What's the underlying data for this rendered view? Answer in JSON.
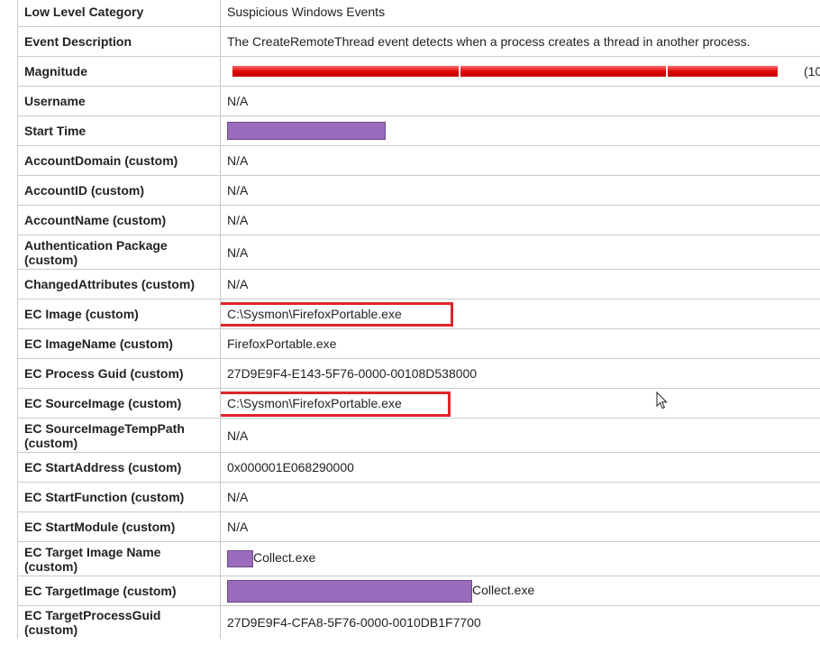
{
  "rows": [
    {
      "label": "Low Level Category",
      "value": "Suspicious Windows Events"
    },
    {
      "label": "Event Description",
      "value": "The CreateRemoteThread event detects when a process creates a thread in another process."
    },
    {
      "label": "Magnitude",
      "value": "(10",
      "magnitude_fraction": 1.0
    },
    {
      "label": "Username",
      "value": "N/A"
    },
    {
      "label": "Start Time",
      "value": "",
      "redacted": true
    },
    {
      "label": "AccountDomain (custom)",
      "value": "N/A"
    },
    {
      "label": "AccountID (custom)",
      "value": "N/A"
    },
    {
      "label": "AccountName (custom)",
      "value": "N/A"
    },
    {
      "label": "Authentication Package (custom)",
      "value": "N/A"
    },
    {
      "label": "ChangedAttributes (custom)",
      "value": "N/A"
    },
    {
      "label": "EC Image (custom)",
      "value": "C:\\Sysmon\\FirefoxPortable.exe",
      "highlighted": true
    },
    {
      "label": "EC ImageName (custom)",
      "value": "FirefoxPortable.exe"
    },
    {
      "label": "EC Process Guid (custom)",
      "value": "27D9E9F4-E143-5F76-0000-00108D538000"
    },
    {
      "label": "EC SourceImage (custom)",
      "value": "C:\\Sysmon\\FirefoxPortable.exe",
      "highlighted": true
    },
    {
      "label": "EC SourceImageTempPath (custom)",
      "value": "N/A"
    },
    {
      "label": "EC StartAddress (custom)",
      "value": "0x000001E068290000"
    },
    {
      "label": "EC StartFunction (custom)",
      "value": "N/A"
    },
    {
      "label": "EC StartModule (custom)",
      "value": "N/A"
    },
    {
      "label": "EC Target Image Name (custom)",
      "value": "Collect.exe",
      "redacted_prefix": true
    },
    {
      "label": "EC TargetImage (custom)",
      "value": "Collect.exe",
      "redacted_prefix": true
    },
    {
      "label": "EC TargetProcessGuid (custom)",
      "value": "27D9E9F4-CFA8-5F76-0000-0010DB1F7700"
    }
  ],
  "colors": {
    "highlight_box": "#e0252b",
    "redaction": "#9b6bbd",
    "magnitude_bar": "#dd0000",
    "grid": "#c9c9c9"
  },
  "icons": {
    "pointer": "mouse-pointer-icon"
  }
}
